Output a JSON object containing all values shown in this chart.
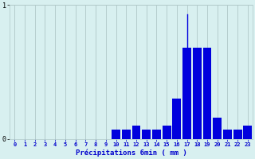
{
  "xlabel": "Précipitations 6min ( mm )",
  "bar_color": "#0000dd",
  "background_color": "#d8f0f0",
  "grid_color": "#b0c8c8",
  "text_color": "#0000cc",
  "ylim": [
    0,
    1.0
  ],
  "xlim": [
    -0.5,
    23.5
  ],
  "yticks": [
    0,
    1
  ],
  "xticks": [
    0,
    1,
    2,
    3,
    4,
    5,
    6,
    7,
    8,
    9,
    10,
    11,
    12,
    13,
    14,
    15,
    16,
    17,
    18,
    19,
    20,
    21,
    22,
    23
  ],
  "values": [
    0,
    0,
    0,
    0,
    0,
    0,
    0,
    0,
    0,
    0,
    0.07,
    0.07,
    0.1,
    0.07,
    0.07,
    0.1,
    0.3,
    0.68,
    0.68,
    0.68,
    0.16,
    0.07,
    0.07,
    0.1
  ],
  "spike_bar": 17,
  "spike_value": 0.93,
  "bar_width": 0.85
}
